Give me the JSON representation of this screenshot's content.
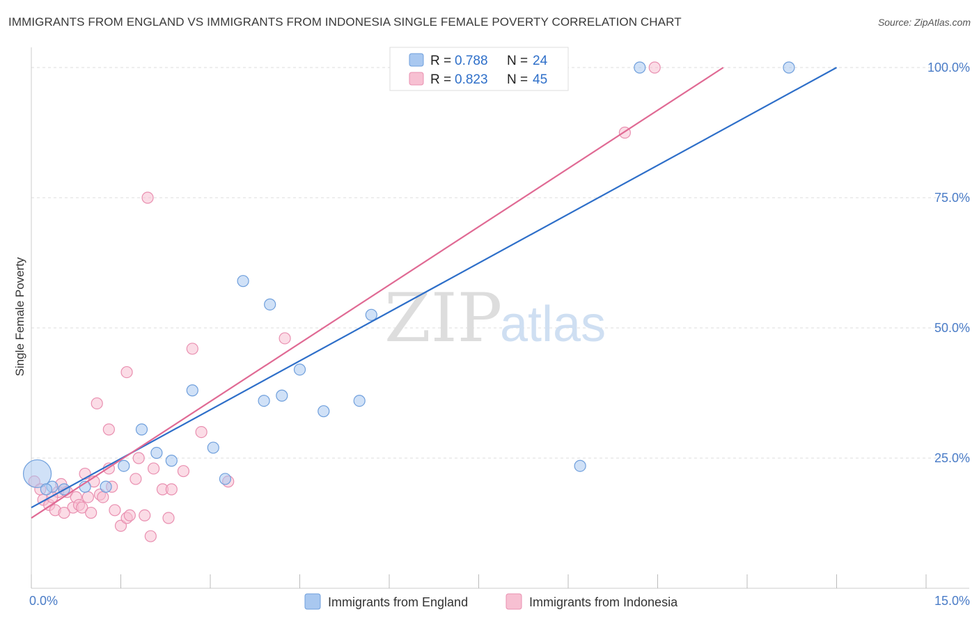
{
  "title": "IMMIGRANTS FROM ENGLAND VS IMMIGRANTS FROM INDONESIA SINGLE FEMALE POVERTY CORRELATION CHART",
  "source": "Source: ZipAtlas.com",
  "watermark": {
    "zip": "ZIP",
    "atlas": "atlas"
  },
  "chart_data": {
    "type": "scatter",
    "xlabel": "",
    "ylabel": "Single Female Poverty",
    "xlim": [
      0,
      15
    ],
    "ylim": [
      0,
      100
    ],
    "x_tick_labels": [
      "0.0%",
      "15.0%"
    ],
    "y_ticks": [
      25,
      50,
      75,
      100
    ],
    "y_tick_labels": [
      "25.0%",
      "50.0%",
      "75.0%",
      "100.0%"
    ],
    "grid": true,
    "legend": {
      "position": "top-center",
      "entries": [
        {
          "r_label": "R = ",
          "r_value": "0.788",
          "n_label": "N = ",
          "n_value": "24"
        },
        {
          "r_label": "R = ",
          "r_value": "0.823",
          "n_label": "N = ",
          "n_value": "45"
        }
      ]
    },
    "series": [
      {
        "name": "Immigrants from England",
        "color": "#a9c8f0",
        "stroke": "#6f9fdc",
        "line_color": "#2e6fc9",
        "trend": {
          "x0": 0,
          "y0": 15.5,
          "x1": 13.5,
          "y1": 100
        },
        "points": [
          [
            0.1,
            22.0
          ],
          [
            0.35,
            19.5
          ],
          [
            0.55,
            19.0
          ],
          [
            0.9,
            19.5
          ],
          [
            1.25,
            19.5
          ],
          [
            1.55,
            23.5
          ],
          [
            1.85,
            30.5
          ],
          [
            2.1,
            26.0
          ],
          [
            2.35,
            24.5
          ],
          [
            2.7,
            38.0
          ],
          [
            3.05,
            27.0
          ],
          [
            3.25,
            21.0
          ],
          [
            3.55,
            59.0
          ],
          [
            3.9,
            36.0
          ],
          [
            4.0,
            54.5
          ],
          [
            4.2,
            37.0
          ],
          [
            4.5,
            42.0
          ],
          [
            4.9,
            34.0
          ],
          [
            5.5,
            36.0
          ],
          [
            5.7,
            52.5
          ],
          [
            9.2,
            23.5
          ],
          [
            10.2,
            100.0
          ],
          [
            12.7,
            100.0
          ],
          [
            0.25,
            19.0
          ]
        ]
      },
      {
        "name": "Immigrants from Indonesia",
        "color": "#f7c0d2",
        "stroke": "#e98fb0",
        "line_color": "#e06a94",
        "trend": {
          "x0": 0,
          "y0": 13.5,
          "x1": 11.6,
          "y1": 100
        },
        "points": [
          [
            0.05,
            20.5
          ],
          [
            0.15,
            19.0
          ],
          [
            0.2,
            17.0
          ],
          [
            0.3,
            16.0
          ],
          [
            0.4,
            15.0
          ],
          [
            0.45,
            18.5
          ],
          [
            0.5,
            20.0
          ],
          [
            0.6,
            18.5
          ],
          [
            0.7,
            15.5
          ],
          [
            0.75,
            17.5
          ],
          [
            0.8,
            16.0
          ],
          [
            0.9,
            22.0
          ],
          [
            0.95,
            17.5
          ],
          [
            1.05,
            20.5
          ],
          [
            1.15,
            18.0
          ],
          [
            1.2,
            17.5
          ],
          [
            1.3,
            23.0
          ],
          [
            1.35,
            19.5
          ],
          [
            1.4,
            15.0
          ],
          [
            1.5,
            12.0
          ],
          [
            1.6,
            13.5
          ],
          [
            1.65,
            14.0
          ],
          [
            1.75,
            21.0
          ],
          [
            1.8,
            25.0
          ],
          [
            1.9,
            14.0
          ],
          [
            2.0,
            10.0
          ],
          [
            2.05,
            23.0
          ],
          [
            2.3,
            13.5
          ],
          [
            2.55,
            22.5
          ],
          [
            2.7,
            46.0
          ],
          [
            2.85,
            30.0
          ],
          [
            3.3,
            20.5
          ],
          [
            2.2,
            19.0
          ],
          [
            1.1,
            35.5
          ],
          [
            1.3,
            30.5
          ],
          [
            1.6,
            41.5
          ],
          [
            1.95,
            75.0
          ],
          [
            4.25,
            48.0
          ],
          [
            9.95,
            87.5
          ],
          [
            10.45,
            100.0
          ],
          [
            0.55,
            14.5
          ],
          [
            0.85,
            15.5
          ],
          [
            1.0,
            14.5
          ],
          [
            2.35,
            19.0
          ],
          [
            0.35,
            17.5
          ]
        ]
      }
    ]
  }
}
